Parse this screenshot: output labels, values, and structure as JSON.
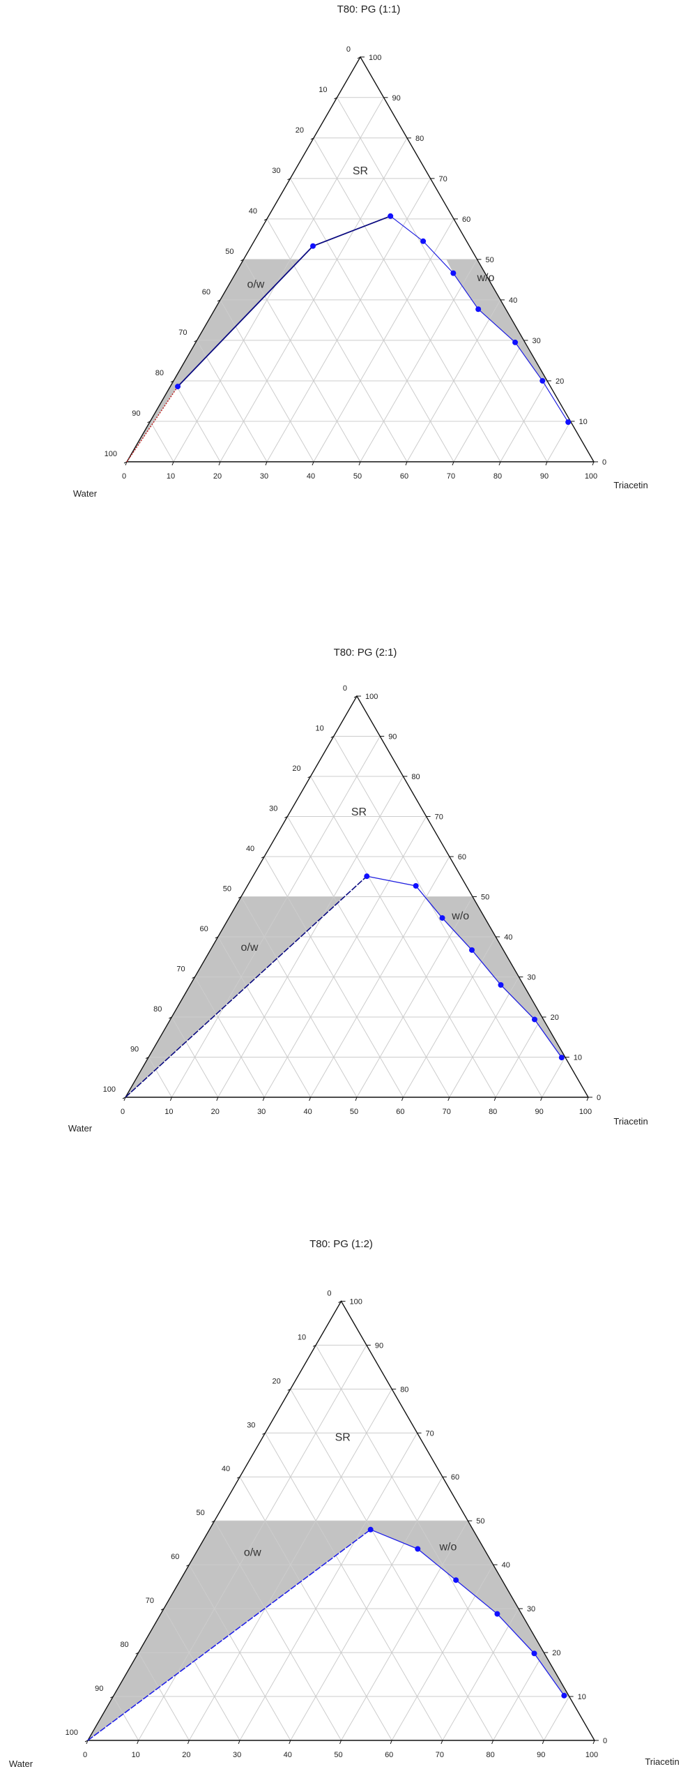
{
  "chart_data": [
    {
      "type": "ternary",
      "title": "T80: PG (1:1)",
      "corner_labels": {
        "bottom_left": "Water",
        "bottom_right": "Triacetin"
      },
      "ticks": [
        0,
        10,
        20,
        30,
        40,
        50,
        60,
        70,
        80,
        90,
        100
      ],
      "grid": true,
      "point_fields": [
        "Triacetin",
        "Water"
      ],
      "boundary_points": [
        [
          1.6,
          79.8
        ],
        [
          13.2,
          33.5
        ],
        [
          26.1,
          13.2
        ],
        [
          36.2,
          9.3
        ],
        [
          46.6,
          6.8
        ],
        [
          56.4,
          5.9
        ],
        [
          68.4,
          2.1
        ],
        [
          79.0,
          1.0
        ],
        [
          89.6,
          0.6
        ]
      ],
      "red_dotted_line": [
        [
          0,
          100
        ],
        [
          1.6,
          79.8
        ]
      ],
      "shaded_regions": [
        {
          "label": "o/w",
          "polygon": [
            [
              0,
              100
            ],
            [
              0,
              50
            ],
            [
              12.1,
              37.9
            ],
            [
              1.6,
              79.8
            ]
          ]
        },
        {
          "label": "w/o",
          "polygon": [
            [
              43.4,
              6.6
            ],
            [
              50,
              0
            ],
            [
              80,
              0
            ],
            [
              79.0,
              1.0
            ],
            [
              68.4,
              2.1
            ],
            [
              56.4,
              5.9
            ],
            [
              46.6,
              6.8
            ]
          ]
        }
      ],
      "region_labels": [
        "SR",
        "o/w",
        "w/o"
      ],
      "colors": {
        "line": "#1f1fe0",
        "line_dark": "#0a0a80",
        "marker": "#1010ff",
        "fill": "#c3c3c3",
        "grid": "#cccccc",
        "red": "#c02020"
      }
    },
    {
      "type": "ternary",
      "title": "T80: PG (2:1)",
      "corner_labels": {
        "bottom_left": "Water",
        "bottom_right": "Triacetin"
      },
      "ticks": [
        0,
        10,
        20,
        30,
        40,
        50,
        60,
        70,
        80,
        90,
        100
      ],
      "grid": true,
      "point_fields": [
        "Triacetin",
        "Water"
      ],
      "line_from_water_corner": [
        [
          0,
          100
        ],
        [
          24.6,
          20.3
        ]
      ],
      "boundary_points": [
        [
          24.6,
          20.3
        ],
        [
          36.4,
          10.9
        ],
        [
          46.1,
          9.2
        ],
        [
          56.5,
          6.8
        ],
        [
          67.1,
          4.9
        ],
        [
          78.7,
          1.9
        ],
        [
          89.3,
          0.8
        ]
      ],
      "shaded_regions": [
        {
          "label": "o/w",
          "polygon": [
            [
              0,
              100
            ],
            [
              0,
              50
            ],
            [
              22.3,
              27.7
            ]
          ]
        },
        {
          "label": "w/o",
          "polygon": [
            [
              39.7,
              10.3
            ],
            [
              50,
              0
            ],
            [
              90,
              0
            ],
            [
              89.3,
              0.8
            ],
            [
              78.7,
              1.9
            ],
            [
              67.1,
              4.9
            ],
            [
              56.5,
              6.8
            ],
            [
              46.1,
              9.2
            ]
          ]
        }
      ],
      "region_labels": [
        "SR",
        "o/w",
        "w/o"
      ],
      "colors": {
        "line": "#1f1fe0",
        "line_dark": "#0a0a80",
        "marker": "#1010ff",
        "fill": "#c3c3c3",
        "grid": "#cccccc"
      }
    },
    {
      "type": "ternary",
      "title": "T80: PG (1:2)",
      "corner_labels": {
        "bottom_left": "Water",
        "bottom_right": "Triacetin"
      },
      "ticks": [
        0,
        10,
        20,
        30,
        40,
        50,
        60,
        70,
        80,
        90,
        100
      ],
      "grid": true,
      "point_fields": [
        "Triacetin",
        "Water"
      ],
      "line_from_water_corner": [
        [
          0,
          100
        ],
        [
          31.8,
          20.2
        ]
      ],
      "boundary_points": [
        [
          31.8,
          20.2
        ],
        [
          43.3,
          13.1
        ],
        [
          54.4,
          9.1
        ],
        [
          66.4,
          4.8
        ],
        [
          78.2,
          2.0
        ],
        [
          88.9,
          0.9
        ]
      ],
      "shaded_regions": [
        {
          "label": "o/w + w/o",
          "polygon": [
            [
              0,
              100
            ],
            [
              0,
              50
            ],
            [
              50,
              0
            ],
            [
              90,
              0
            ],
            [
              88.9,
              0.9
            ],
            [
              78.2,
              2.0
            ],
            [
              66.4,
              4.8
            ],
            [
              54.4,
              9.1
            ],
            [
              43.3,
              13.1
            ],
            [
              31.8,
              20.2
            ]
          ]
        }
      ],
      "region_labels": [
        "SR",
        "o/w",
        "w/o"
      ],
      "colors": {
        "line": "#2020e8",
        "line_dark": "#2020e8",
        "marker": "#1010ff",
        "fill": "#c3c3c3",
        "grid": "#cccccc"
      }
    }
  ]
}
